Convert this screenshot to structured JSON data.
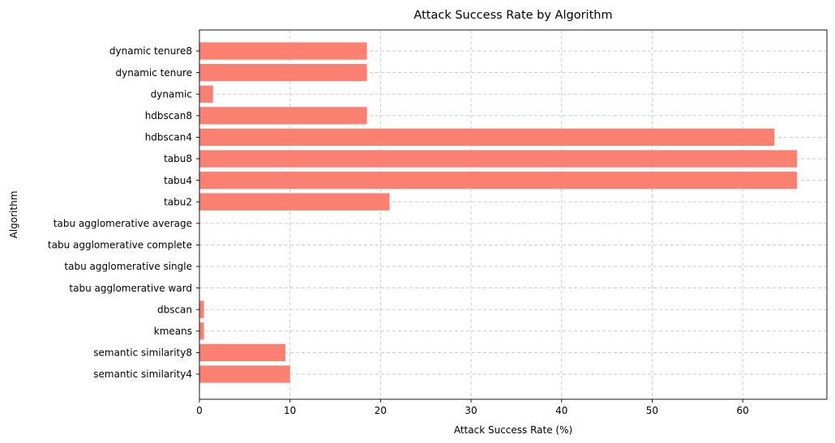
{
  "chart_data": {
    "type": "bar",
    "orientation": "horizontal",
    "title": "Attack Success Rate by Algorithm",
    "xlabel": "Attack Success Rate (%)",
    "ylabel": "Algorithm",
    "categories": [
      "semantic similarity4",
      "semantic similarity8",
      "kmeans",
      "dbscan",
      "tabu agglomerative ward",
      "tabu agglomerative single",
      "tabu agglomerative complete",
      "tabu agglomerative average",
      "tabu2",
      "tabu4",
      "tabu8",
      "hdbscan4",
      "hdbscan8",
      "dynamic",
      "dynamic tenure",
      "dynamic tenure8"
    ],
    "values": [
      10.0,
      9.5,
      0.5,
      0.5,
      0,
      0,
      0,
      0,
      21.0,
      66.0,
      66.0,
      63.5,
      18.5,
      1.5,
      18.5,
      18.5
    ],
    "xlim": [
      0,
      69.3
    ],
    "xticks": [
      0,
      10,
      20,
      30,
      40,
      50,
      60
    ],
    "grid": true,
    "bar_color": "#fa8072"
  }
}
